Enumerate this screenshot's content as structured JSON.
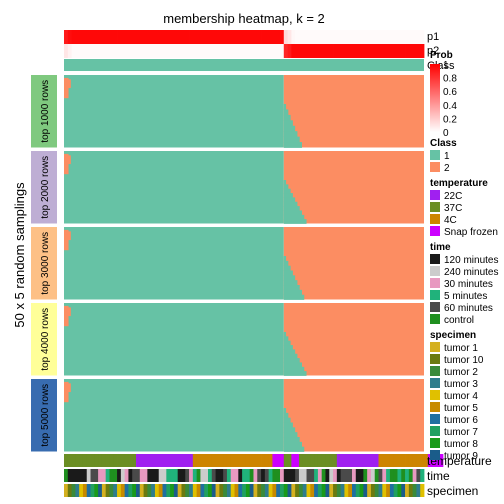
{
  "chart_data": {
    "type": "heatmap",
    "title": "membership heatmap, k = 2",
    "ylabel": "50 x 5 random samplings",
    "n_samples": 95,
    "boundary_index": 58,
    "top_rows": {
      "labels": [
        "p1",
        "p2",
        "Class"
      ],
      "p1": [
        0.9,
        0.95,
        0.97,
        0.97,
        0.97,
        0.97,
        0.97,
        0.97,
        0.97,
        0.97,
        0.97,
        0.97,
        0.97,
        0.97,
        0.97,
        0.97,
        0.97,
        0.97,
        0.97,
        0.97,
        0.97,
        0.97,
        0.97,
        0.97,
        0.97,
        0.97,
        0.97,
        0.97,
        0.97,
        0.97,
        0.97,
        0.97,
        0.97,
        0.97,
        0.97,
        0.97,
        0.97,
        0.97,
        0.97,
        0.97,
        0.97,
        0.97,
        0.97,
        0.97,
        0.97,
        0.97,
        0.97,
        0.97,
        0.97,
        0.97,
        0.97,
        0.97,
        0.97,
        0.97,
        0.97,
        0.97,
        0.97,
        0.97,
        0.15,
        0.1,
        0.03,
        0.02,
        0.02,
        0.02,
        0.02,
        0.02,
        0.02,
        0.02,
        0.02,
        0.02,
        0.02,
        0.02,
        0.02,
        0.02,
        0.02,
        0.02,
        0.02,
        0.02,
        0.02,
        0.02,
        0.02,
        0.02,
        0.02,
        0.02,
        0.02,
        0.02,
        0.02,
        0.02,
        0.02,
        0.02,
        0.02,
        0.02,
        0.02,
        0.02,
        0.02
      ],
      "p2": [
        0.1,
        0.05,
        0.02,
        0.02,
        0.02,
        0.02,
        0.02,
        0.02,
        0.02,
        0.02,
        0.02,
        0.02,
        0.02,
        0.02,
        0.02,
        0.02,
        0.02,
        0.02,
        0.02,
        0.02,
        0.02,
        0.02,
        0.02,
        0.02,
        0.02,
        0.02,
        0.02,
        0.02,
        0.02,
        0.02,
        0.02,
        0.02,
        0.02,
        0.02,
        0.02,
        0.02,
        0.02,
        0.02,
        0.02,
        0.02,
        0.02,
        0.02,
        0.02,
        0.02,
        0.02,
        0.02,
        0.02,
        0.02,
        0.02,
        0.02,
        0.02,
        0.02,
        0.02,
        0.02,
        0.02,
        0.02,
        0.02,
        0.02,
        0.85,
        0.9,
        0.97,
        0.97,
        0.97,
        0.97,
        0.97,
        0.97,
        0.97,
        0.97,
        0.97,
        0.97,
        0.97,
        0.97,
        0.97,
        0.97,
        0.97,
        0.97,
        0.97,
        0.97,
        0.97,
        0.97,
        0.97,
        0.97,
        0.97,
        0.97,
        0.97,
        0.97,
        0.97,
        0.97,
        0.97,
        0.97,
        0.97,
        0.97,
        0.97,
        0.97,
        0.97
      ],
      "class_color": "#66C2A5"
    },
    "panels": [
      {
        "label": "top 1000 rows",
        "color": "#7FC97F",
        "outlier_rows": [
          2,
          3,
          4,
          5
        ],
        "ragged_count": 8
      },
      {
        "label": "top 2000 rows",
        "color": "#BEAED4",
        "outlier_rows": [
          2,
          3,
          4,
          5
        ],
        "ragged_count": 10
      },
      {
        "label": "top 3000 rows",
        "color": "#FDC086",
        "outlier_rows": [
          2,
          3,
          4
        ],
        "ragged_count": 9
      },
      {
        "label": "top 4000 rows",
        "color": "#FFFF99",
        "outlier_rows": [
          2,
          3,
          4,
          5
        ],
        "ragged_count": 10
      },
      {
        "label": "top 5000 rows",
        "color": "#386CB0",
        "outlier_rows": [
          2,
          3,
          4
        ],
        "ragged_count": 9
      }
    ],
    "class_colors": {
      "1": "#66C2A5",
      "2": "#FC8D62"
    },
    "bottom_annotations": [
      {
        "label": "temperature",
        "values": [
          "37C",
          "37C",
          "37C",
          "37C",
          "37C",
          "37C",
          "37C",
          "37C",
          "37C",
          "37C",
          "37C",
          "37C",
          "37C",
          "37C",
          "37C",
          "37C",
          "37C",
          "37C",
          "37C",
          "22C",
          "22C",
          "22C",
          "22C",
          "22C",
          "22C",
          "22C",
          "22C",
          "22C",
          "22C",
          "22C",
          "22C",
          "22C",
          "22C",
          "22C",
          "4C",
          "4C",
          "4C",
          "4C",
          "4C",
          "4C",
          "4C",
          "4C",
          "4C",
          "4C",
          "4C",
          "4C",
          "4C",
          "4C",
          "4C",
          "4C",
          "4C",
          "4C",
          "4C",
          "4C",
          "4C",
          "Snap frozen",
          "Snap frozen",
          "Snap frozen",
          "37C",
          "37C",
          "Snap frozen",
          "Snap frozen",
          "37C",
          "37C",
          "37C",
          "37C",
          "37C",
          "37C",
          "37C",
          "37C",
          "37C",
          "37C",
          "22C",
          "22C",
          "22C",
          "22C",
          "22C",
          "22C",
          "22C",
          "22C",
          "22C",
          "22C",
          "22C",
          "4C",
          "4C",
          "4C",
          "4C",
          "4C",
          "4C",
          "4C",
          "4C",
          "4C",
          "4C",
          "4C",
          "4C",
          "4C",
          "Snap frozen",
          "Snap frozen",
          "Snap frozen",
          "Snap frozen"
        ]
      },
      {
        "label": "time",
        "values": [
          "control",
          "120 minutes",
          "120 minutes",
          "120 minutes",
          "120 minutes",
          "120 minutes",
          "240 minutes",
          "60 minutes",
          "60 minutes",
          "30 minutes",
          "30 minutes",
          "5 minutes",
          "control",
          "control",
          "120 minutes",
          "240 minutes",
          "30 minutes",
          "120 minutes",
          "60 minutes",
          "60 minutes",
          "30 minutes",
          "30 minutes",
          "120 minutes",
          "120 minutes",
          "120 minutes",
          "240 minutes",
          "240 minutes",
          "5 minutes",
          "5 minutes",
          "5 minutes",
          "120 minutes",
          "120 minutes",
          "60 minutes",
          "30 minutes",
          "5 minutes",
          "control",
          "240 minutes",
          "240 minutes",
          "5 minutes",
          "60 minutes",
          "120 minutes",
          "120 minutes",
          "60 minutes",
          "5 minutes",
          "30 minutes",
          "30 minutes",
          "120 minutes",
          "5 minutes",
          "5 minutes",
          "control",
          "30 minutes",
          "60 minutes",
          "120 minutes",
          "60 minutes",
          "5 minutes",
          "control",
          "control",
          "30 minutes",
          "120 minutes",
          "120 minutes",
          "120 minutes",
          "60 minutes",
          "240 minutes",
          "240 minutes",
          "60 minutes",
          "60 minutes",
          "5 minutes",
          "30 minutes",
          "control",
          "120 minutes",
          "240 minutes",
          "30 minutes",
          "120 minutes",
          "60 minutes",
          "60 minutes",
          "60 minutes",
          "30 minutes",
          "120 minutes",
          "120 minutes",
          "control",
          "30 minutes",
          "240 minutes",
          "control",
          "60 minutes",
          "30 minutes",
          "5 minutes",
          "control",
          "control",
          "5 minutes",
          "control",
          "5 minutes",
          "control",
          "30 minutes",
          "60 minutes",
          "5 minutes"
        ]
      },
      {
        "label": "specimen",
        "values": [
          "tumor 1",
          "tumor 10",
          "tumor 2",
          "tumor 3",
          "tumor 4",
          "tumor 5",
          "tumor 6",
          "tumor 7",
          "tumor 8",
          "tumor 9",
          "tumor 1",
          "tumor 10",
          "tumor 2",
          "tumor 3",
          "tumor 4",
          "tumor 5",
          "tumor 6",
          "tumor 7",
          "tumor 8",
          "tumor 9",
          "tumor 1",
          "tumor 10",
          "tumor 2",
          "tumor 3",
          "tumor 4",
          "tumor 5",
          "tumor 6",
          "tumor 7",
          "tumor 8",
          "tumor 9",
          "tumor 1",
          "tumor 10",
          "tumor 2",
          "tumor 3",
          "tumor 4",
          "tumor 5",
          "tumor 6",
          "tumor 7",
          "tumor 8",
          "tumor 9",
          "tumor 1",
          "tumor 10",
          "tumor 2",
          "tumor 3",
          "tumor 4",
          "tumor 5",
          "tumor 6",
          "tumor 7",
          "tumor 8",
          "tumor 9",
          "tumor 1",
          "tumor 10",
          "tumor 2",
          "tumor 3",
          "tumor 4",
          "tumor 5",
          "tumor 6",
          "tumor 7",
          "tumor 8",
          "tumor 9",
          "tumor 1",
          "tumor 10",
          "tumor 2",
          "tumor 3",
          "tumor 4",
          "tumor 5",
          "tumor 6",
          "tumor 7",
          "tumor 8",
          "tumor 9",
          "tumor 1",
          "tumor 10",
          "tumor 2",
          "tumor 3",
          "tumor 4",
          "tumor 5",
          "tumor 6",
          "tumor 7",
          "tumor 8",
          "tumor 9",
          "tumor 1",
          "tumor 10",
          "tumor 2",
          "tumor 3",
          "tumor 4",
          "tumor 5",
          "tumor 6",
          "tumor 7",
          "tumor 8",
          "tumor 9",
          "tumor 1",
          "tumor 10",
          "tumor 2",
          "tumor 3",
          "tumor 4"
        ]
      }
    ],
    "legends": [
      {
        "title": "Prob",
        "kind": "gradient",
        "ticks": [
          "1",
          "0.8",
          "0.6",
          "0.4",
          "0.2",
          "0"
        ],
        "color_high": "#FF0000",
        "color_low": "#FFFFFF"
      },
      {
        "title": "Class",
        "items": [
          {
            "label": "1",
            "color": "#66C2A5"
          },
          {
            "label": "2",
            "color": "#FC8D62"
          }
        ]
      },
      {
        "title": "temperature",
        "items": [
          {
            "label": "22C",
            "color": "#A020F0"
          },
          {
            "label": "37C",
            "color": "#6B8E23"
          },
          {
            "label": "4C",
            "color": "#CD8500"
          },
          {
            "label": "Snap frozen",
            "color": "#CC00FF"
          }
        ]
      },
      {
        "title": "time",
        "items": [
          {
            "label": "120 minutes",
            "color": "#1A1A1A"
          },
          {
            "label": "240 minutes",
            "color": "#CCCCCC"
          },
          {
            "label": "30 minutes",
            "color": "#E899C0"
          },
          {
            "label": "5 minutes",
            "color": "#20B27B"
          },
          {
            "label": "60 minutes",
            "color": "#4A4A4A"
          },
          {
            "label": "control",
            "color": "#1F8F1F"
          }
        ]
      },
      {
        "title": "specimen",
        "items": [
          {
            "label": "tumor 1",
            "color": "#D4B020"
          },
          {
            "label": "tumor 10",
            "color": "#6B7A10"
          },
          {
            "label": "tumor 2",
            "color": "#3A8A3A"
          },
          {
            "label": "tumor 3",
            "color": "#2E7D8C"
          },
          {
            "label": "tumor 4",
            "color": "#E0C000"
          },
          {
            "label": "tumor 5",
            "color": "#C78A00"
          },
          {
            "label": "tumor 6",
            "color": "#1F6FA0"
          },
          {
            "label": "tumor 7",
            "color": "#20A060"
          },
          {
            "label": "tumor 8",
            "color": "#1A9A1A"
          },
          {
            "label": "tumor 9",
            "color": "#1A5C8A"
          }
        ]
      }
    ]
  }
}
